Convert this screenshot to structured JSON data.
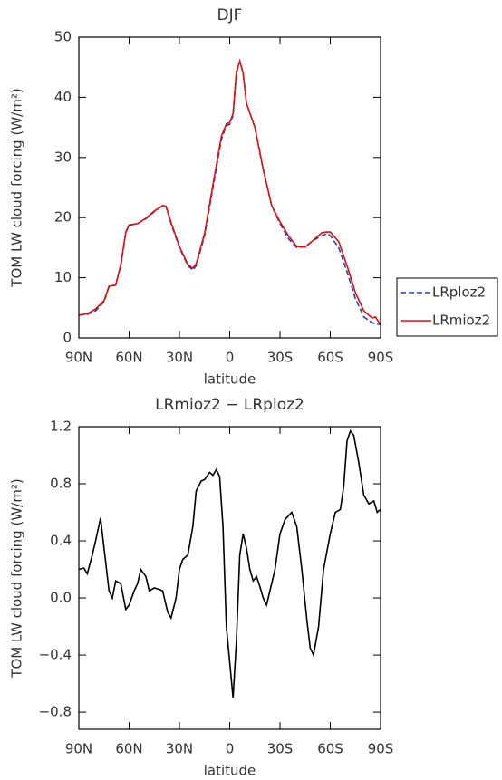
{
  "chart_data": [
    {
      "type": "line",
      "title": "DJF",
      "xlabel": "latitude",
      "ylabel": "TOM LW cloud forcing (W/m²)",
      "x": [
        90,
        85,
        80,
        75,
        72,
        68,
        65,
        62,
        60,
        55,
        50,
        45,
        40,
        38,
        35,
        30,
        25,
        22,
        20,
        15,
        10,
        5,
        2,
        0,
        -2,
        -4,
        -6,
        -8,
        -10,
        -15,
        -20,
        -25,
        -30,
        -35,
        -40,
        -45,
        -50,
        -55,
        -58,
        -60,
        -65,
        -70,
        -75,
        -80,
        -85,
        -87,
        -90
      ],
      "series": [
        {
          "name": "LRploz2",
          "color": "#1f3fbf",
          "dash": true,
          "values": [
            3.8,
            3.9,
            4.5,
            6,
            8.5,
            8.8,
            12,
            17.5,
            18.7,
            19,
            19.8,
            21,
            22,
            21.8,
            19,
            15,
            12,
            11.3,
            12,
            17,
            25,
            33,
            35.3,
            35.5,
            37,
            44,
            46,
            44,
            39,
            35,
            28,
            22,
            19,
            16.5,
            15,
            15.2,
            16.2,
            17,
            17.3,
            17,
            15,
            11,
            6.5,
            3.5,
            2.5,
            2.4,
            2.2
          ]
        },
        {
          "name": "LRmioz2",
          "color": "#e01010",
          "dash": false,
          "values": [
            3.8,
            4.0,
            4.8,
            6.2,
            8.6,
            8.8,
            12.2,
            17.6,
            18.8,
            19,
            19.9,
            21.1,
            22,
            21.9,
            19.2,
            15.2,
            12.2,
            11.6,
            12.3,
            17.4,
            25.5,
            33.5,
            35.6,
            35.8,
            37.3,
            44.3,
            46,
            44,
            39,
            35,
            28,
            22,
            19.3,
            17,
            15.2,
            15.1,
            16.3,
            17.5,
            17.6,
            17.6,
            16,
            12,
            7.5,
            4.5,
            3.3,
            3.5,
            2.2
          ]
        }
      ],
      "xlim": [
        90,
        -90
      ],
      "xticks": [
        {
          "value": 90,
          "label": "90N"
        },
        {
          "value": 60,
          "label": "60N"
        },
        {
          "value": 30,
          "label": "30N"
        },
        0,
        {
          "value": -30,
          "label": "30S"
        },
        {
          "value": -60,
          "label": "60S"
        },
        {
          "value": -90,
          "label": "90S"
        }
      ],
      "ylim": [
        0,
        50
      ],
      "yticks": [
        0,
        10,
        20,
        30,
        40,
        50
      ],
      "legend": "outside right"
    },
    {
      "type": "line",
      "title": "LRmioz2 − LRploz2",
      "xlabel": "latitude",
      "ylabel": "TOM LW cloud forcing (W/m²)",
      "x": [
        90,
        87,
        85,
        82,
        80,
        77,
        75,
        72,
        70,
        68,
        65,
        62,
        60,
        57,
        55,
        53,
        50,
        48,
        45,
        42,
        40,
        37,
        35,
        32,
        30,
        28,
        25,
        22,
        20,
        17,
        15,
        12,
        10,
        8,
        6,
        4,
        2,
        0,
        -2,
        -4,
        -6,
        -8,
        -10,
        -12,
        -14,
        -16,
        -18,
        -20,
        -22,
        -24,
        -27,
        -30,
        -33,
        -37,
        -40,
        -43,
        -46,
        -48,
        -50,
        -53,
        -56,
        -60,
        -63,
        -66,
        -68,
        -70,
        -72,
        -74,
        -77,
        -80,
        -83,
        -86,
        -88,
        -90
      ],
      "values": [
        0.2,
        0.21,
        0.17,
        0.3,
        0.4,
        0.56,
        0.35,
        0.05,
        0.0,
        0.12,
        0.1,
        -0.08,
        -0.05,
        0.05,
        0.1,
        0.2,
        0.15,
        0.05,
        0.07,
        0.06,
        0.05,
        -0.1,
        -0.14,
        0.0,
        0.2,
        0.27,
        0.3,
        0.5,
        0.75,
        0.82,
        0.83,
        0.88,
        0.86,
        0.9,
        0.85,
        0.5,
        -0.2,
        -0.45,
        -0.7,
        -0.3,
        0.3,
        0.45,
        0.35,
        0.2,
        0.12,
        0.15,
        0.08,
        0.0,
        -0.05,
        0.05,
        0.2,
        0.45,
        0.55,
        0.6,
        0.5,
        0.2,
        -0.15,
        -0.35,
        -0.4,
        -0.2,
        0.2,
        0.45,
        0.6,
        0.62,
        0.78,
        1.1,
        1.17,
        1.14,
        0.95,
        0.72,
        0.66,
        0.68,
        0.6,
        0.62
      ],
      "color": "#000000",
      "xlim": [
        90,
        -90
      ],
      "xticks": [
        {
          "value": 90,
          "label": "90N"
        },
        {
          "value": 60,
          "label": "60N"
        },
        {
          "value": 30,
          "label": "30N"
        },
        0,
        {
          "value": -30,
          "label": "30S"
        },
        {
          "value": -60,
          "label": "60S"
        },
        {
          "value": -90,
          "label": "90S"
        }
      ],
      "ylim": [
        -0.92,
        1.2
      ],
      "yticks": [
        {
          "value": -0.8,
          "label": "−0.8"
        },
        {
          "value": -0.4,
          "label": "−0.4"
        },
        {
          "value": 0,
          "label": "0.0"
        },
        0.4,
        0.8,
        1.2
      ]
    }
  ]
}
